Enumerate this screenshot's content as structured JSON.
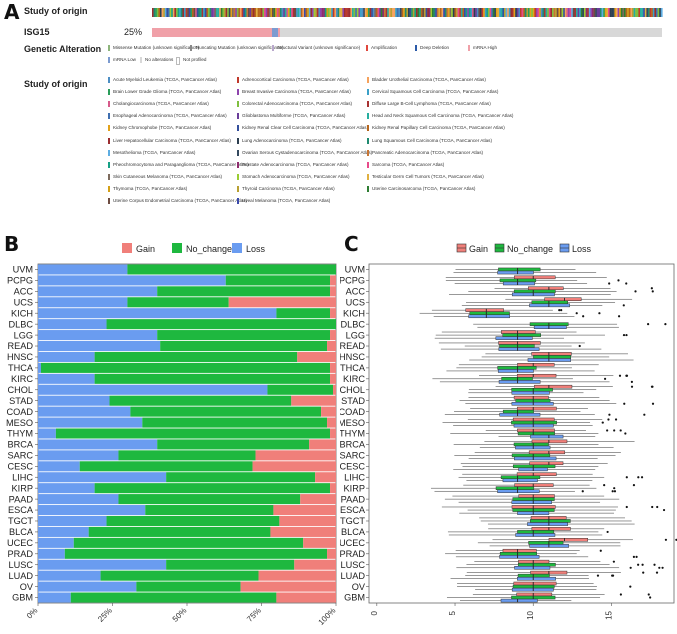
{
  "panels": {
    "A": "A",
    "B": "B",
    "C": "C"
  },
  "oncoprint": {
    "track1_label": "Study of origin",
    "track2_label": "ISG15",
    "track2_pct": "25%",
    "genetic_alteration_label": "Genetic Alteration",
    "alterations": [
      {
        "label": "Missense Mutation (unknown significance)",
        "color": "#8db57b"
      },
      {
        "label": "Truncating Mutation (unknown significance)",
        "color": "#888888"
      },
      {
        "label": "Structural Variant (unknown significance)",
        "color": "#b9a8cc"
      },
      {
        "label": "Amplification",
        "color": "#e0463c"
      },
      {
        "label": "Deep Deletion",
        "color": "#2b5aa8"
      },
      {
        "label": "mRNA High",
        "color": "#f0a0a8"
      },
      {
        "label": "mRNA Low",
        "color": "#7c9bd0"
      },
      {
        "label": "No alterations",
        "color": "#d8d8d8"
      },
      {
        "label": "Not profiled",
        "color": "#ffffff"
      }
    ],
    "study_legend_label": "Study of origin",
    "studies": [
      {
        "label": "Acute Myeloid Leukemia (TCGA, PanCancer Atlas)",
        "color": "#4d8ec4"
      },
      {
        "label": "Adrenocortical Carcinoma (TCGA, PanCancer Atlas)",
        "color": "#c0392b"
      },
      {
        "label": "Bladder Urothelial Carcinoma (TCGA, PanCancer Atlas)",
        "color": "#f5a25d"
      },
      {
        "label": "Brain Lower Grade Glioma (TCGA, PanCancer Atlas)",
        "color": "#2a9d5a"
      },
      {
        "label": "Breast Invasive Carcinoma (TCGA, PanCancer Atlas)",
        "color": "#8e44ad"
      },
      {
        "label": "Cervical Squamous Cell Carcinoma (TCGA, PanCancer Atlas)",
        "color": "#3aa0c8"
      },
      {
        "label": "Cholangiocarcinoma (TCGA, PanCancer Atlas)",
        "color": "#d65a8a"
      },
      {
        "label": "Colorectal Adenocarcinoma (TCGA, PanCancer Atlas)",
        "color": "#7fbf3f"
      },
      {
        "label": "Diffuse Large B-Cell Lymphoma (TCGA, PanCancer Atlas)",
        "color": "#a83232"
      },
      {
        "label": "Esophageal Adenocarcinoma (TCGA, PanCancer Atlas)",
        "color": "#3f6fb0"
      },
      {
        "label": "Glioblastoma Multiforme (TCGA, PanCancer Atlas)",
        "color": "#6a3d9a"
      },
      {
        "label": "Head and Neck Squamous Cell Carcinoma (TCGA, PanCancer Atlas)",
        "color": "#27ae9f"
      },
      {
        "label": "Kidney Chromophobe (TCGA, PanCancer Atlas)",
        "color": "#e3a21a"
      },
      {
        "label": "Kidney Renal Clear Cell Carcinoma (TCGA, PanCancer Atlas)",
        "color": "#344f9c"
      },
      {
        "label": "Kidney Renal Papillary Cell Carcinoma (TCGA, PanCancer Atlas)",
        "color": "#b5651d"
      },
      {
        "label": "Liver Hepatocellular Carcinoma (TCGA, PanCancer Atlas)",
        "color": "#9b2d30"
      },
      {
        "label": "Lung Adenocarcinoma (TCGA, PanCancer Atlas)",
        "color": "#2c3e50"
      },
      {
        "label": "Lung Squamous Cell Carcinoma (TCGA, PanCancer Atlas)",
        "color": "#1f8a70"
      },
      {
        "label": "Mesothelioma (TCGA, PanCancer Atlas)",
        "color": "#5dade2"
      },
      {
        "label": "Ovarian Serous Cystadenocarcinoma (TCGA, PanCancer Atlas)",
        "color": "#34495e"
      },
      {
        "label": "Pancreatic Adenocarcinoma (TCGA, PanCancer Atlas)",
        "color": "#c87533"
      },
      {
        "label": "Pheochromocytoma and Paraganglioma (TCGA, PanCancer Atlas)",
        "color": "#16a085"
      },
      {
        "label": "Prostate Adenocarcinoma (TCGA, PanCancer Atlas)",
        "color": "#8e2c6e"
      },
      {
        "label": "Sarcoma (TCGA, PanCancer Atlas)",
        "color": "#e84a8a"
      },
      {
        "label": "Skin Cutaneous Melanoma (TCGA, PanCancer Atlas)",
        "color": "#7d6b5d"
      },
      {
        "label": "Stomach Adenocarcinoma (TCGA, PanCancer Atlas)",
        "color": "#9acd32"
      },
      {
        "label": "Testicular Germ Cell Tumors (TCGA, PanCancer Atlas)",
        "color": "#e0b040"
      },
      {
        "label": "Thymoma (TCGA, PanCancer Atlas)",
        "color": "#d4a017"
      },
      {
        "label": "Thyroid Carcinoma (TCGA, PanCancer Atlas)",
        "color": "#b8a032"
      },
      {
        "label": "Uterine Carcinosarcoma (TCGA, PanCancer Atlas)",
        "color": "#2e7d32"
      },
      {
        "label": "Uterine Corpus Endometrial Carcinoma (TCGA, PanCancer Atlas)",
        "color": "#6d4c41"
      },
      {
        "label": "Uveal Melanoma (TCGA, PanCancer Atlas)",
        "color": "#3949ab"
      }
    ]
  },
  "chart_data": [
    {
      "type": "bar",
      "orientation": "horizontal-stacked-percent",
      "legend": [
        "Gain",
        "No_change",
        "Loss"
      ],
      "colors": {
        "Gain": "#f07f7a",
        "No_change": "#1eb83f",
        "Loss": "#6a9cf0"
      },
      "categories": [
        "UVM",
        "PCPG",
        "ACC",
        "UCS",
        "KICH",
        "DLBC",
        "LGG",
        "READ",
        "HNSC",
        "THCA",
        "KIRC",
        "CHOL",
        "STAD",
        "COAD",
        "MESO",
        "THYM",
        "BRCA",
        "SARC",
        "CESC",
        "LIHC",
        "KIRP",
        "PAAD",
        "ESCA",
        "TGCT",
        "BLCA",
        "UCEC",
        "PRAD",
        "LUSC",
        "LUAD",
        "OV",
        "GBM"
      ],
      "series": [
        {
          "name": "Loss",
          "values": [
            30,
            63,
            40,
            30,
            80,
            23,
            40,
            41,
            19,
            1,
            19,
            77,
            24,
            31,
            35,
            6,
            40,
            27,
            14,
            43,
            19,
            27,
            36,
            23,
            17,
            12,
            9,
            43,
            21,
            33,
            11
          ]
        },
        {
          "name": "No_change",
          "values": [
            70,
            35,
            58,
            34,
            18,
            77,
            58,
            56,
            68,
            97,
            79,
            22,
            61,
            64,
            62,
            92,
            51,
            46,
            58,
            50,
            79,
            61,
            43,
            58,
            61,
            77,
            88,
            43,
            53,
            35,
            69
          ]
        },
        {
          "name": "Gain",
          "values": [
            0,
            2,
            2,
            36,
            2,
            0,
            2,
            3,
            13,
            2,
            2,
            1,
            15,
            5,
            3,
            2,
            9,
            27,
            28,
            7,
            2,
            12,
            21,
            19,
            22,
            11,
            3,
            14,
            26,
            32,
            20
          ]
        }
      ],
      "xticks": [
        "0%",
        "25%",
        "50%",
        "75%",
        "100%"
      ],
      "xlim": [
        0,
        100
      ]
    },
    {
      "type": "box",
      "orientation": "horizontal",
      "legend": [
        "Gain",
        "No_change",
        "Loss"
      ],
      "colors": {
        "Gain": "#f07f7a",
        "No_change": "#1eb83f",
        "Loss": "#6a9cf0"
      },
      "categories": [
        "UVM",
        "PCPG",
        "ACC",
        "UCS",
        "KICH",
        "DLBC",
        "LGG",
        "READ",
        "HNSC",
        "THCA",
        "KIRC",
        "CHOL",
        "STAD",
        "COAD",
        "MESO",
        "THYM",
        "BRCA",
        "SARC",
        "CESC",
        "LIHC",
        "KIRP",
        "PAAD",
        "ESCA",
        "TGCT",
        "BLCA",
        "UCEC",
        "PRAD",
        "LUSC",
        "LUAD",
        "OV",
        "GBM"
      ],
      "medians": {
        "Gain": [
          null,
          10,
          11,
          12,
          7,
          null,
          9,
          9,
          11,
          10,
          10,
          11,
          10,
          10,
          10,
          10,
          11,
          11,
          11,
          10,
          10,
          10,
          10,
          11,
          11,
          12,
          9,
          10,
          11,
          10,
          10
        ],
        "No_change": [
          9,
          9,
          10,
          11,
          7,
          11,
          9,
          9,
          11,
          9,
          9,
          10,
          10,
          9,
          10,
          10,
          10,
          10,
          10,
          9,
          9,
          10,
          10,
          11,
          10,
          11,
          9,
          10,
          10,
          10,
          10
        ],
        "Loss": [
          9,
          9,
          10,
          11,
          7,
          11,
          9,
          9,
          11,
          9,
          9,
          10,
          10,
          9,
          10,
          11,
          10,
          10,
          10,
          9,
          9,
          10,
          10,
          11,
          10,
          11,
          9,
          10,
          10,
          10,
          9
        ]
      },
      "xticks": [
        "0",
        "5",
        "10",
        "15"
      ],
      "xlim": [
        -0.5,
        19
      ]
    }
  ]
}
